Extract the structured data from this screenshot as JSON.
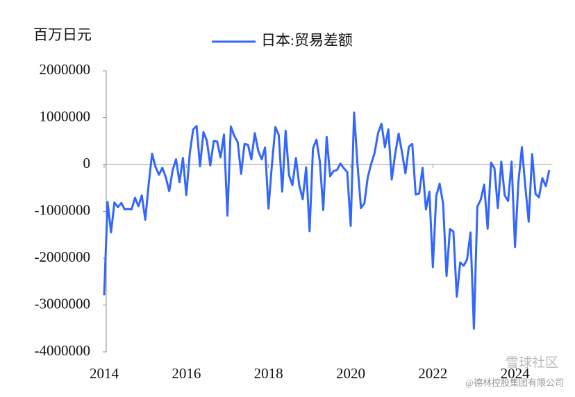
{
  "chart_data": {
    "type": "line",
    "title": "百万日元",
    "categories": [
      "2014",
      null,
      null,
      null,
      null,
      null,
      null,
      null,
      null,
      null,
      null,
      null,
      null,
      null,
      null,
      null,
      null,
      null,
      null,
      null,
      null,
      null,
      null,
      null,
      "2016",
      null,
      null,
      null,
      null,
      null,
      null,
      null,
      null,
      null,
      null,
      null,
      null,
      null,
      null,
      null,
      null,
      null,
      null,
      null,
      null,
      null,
      null,
      null,
      "2018",
      null,
      null,
      null,
      null,
      null,
      null,
      null,
      null,
      null,
      null,
      null,
      null,
      null,
      null,
      null,
      null,
      null,
      null,
      null,
      null,
      null,
      null,
      null,
      "2020",
      null,
      null,
      null,
      null,
      null,
      null,
      null,
      null,
      null,
      null,
      null,
      null,
      null,
      null,
      null,
      null,
      null,
      null,
      null,
      null,
      null,
      null,
      null,
      "2022",
      null,
      null,
      null,
      null,
      null,
      null,
      null,
      null,
      null,
      null,
      null,
      null,
      null,
      null,
      null,
      null,
      null,
      null,
      null,
      null,
      null,
      null,
      null,
      "2024",
      null,
      null,
      null,
      null,
      null,
      null,
      null,
      null,
      null,
      null
    ],
    "series": [
      {
        "name": "日本:贸易差额",
        "color": "#3366ff",
        "values": [
          -2790000,
          -800000,
          -1450000,
          -810000,
          -910000,
          -820000,
          -960000,
          -950000,
          -960000,
          -710000,
          -890000,
          -660000,
          -1180000,
          -420000,
          230000,
          -50000,
          -220000,
          -70000,
          -270000,
          -570000,
          -120000,
          110000,
          -380000,
          140000,
          -650000,
          240000,
          750000,
          820000,
          -40000,
          690000,
          510000,
          -20000,
          500000,
          490000,
          150000,
          640000,
          -1090000,
          810000,
          610000,
          480000,
          -200000,
          440000,
          420000,
          110000,
          670000,
          290000,
          110000,
          360000,
          -940000,
          0,
          800000,
          630000,
          -580000,
          720000,
          -230000,
          -440000,
          140000,
          -450000,
          -740000,
          -60000,
          -1420000,
          340000,
          530000,
          60000,
          -970000,
          590000,
          -250000,
          -140000,
          -120000,
          20000,
          -80000,
          -160000,
          -1310000,
          1110000,
          0,
          -930000,
          -830000,
          -270000,
          10000,
          250000,
          670000,
          870000,
          370000,
          750000,
          -320000,
          220000,
          660000,
          260000,
          -190000,
          380000,
          440000,
          -640000,
          -620000,
          -70000,
          -960000,
          -580000,
          -2190000,
          -670000,
          -410000,
          -840000,
          -2380000,
          -1380000,
          -1430000,
          -2820000,
          -2090000,
          -2160000,
          -2030000,
          -1450000,
          -3500000,
          -900000,
          -750000,
          -430000,
          -1370000,
          40000,
          -80000,
          -930000,
          60000,
          -660000,
          -780000,
          60000,
          -1760000,
          -380000,
          370000,
          -460000,
          -1220000,
          220000,
          -630000,
          -700000,
          -290000,
          -460000,
          -120000
        ]
      }
    ],
    "ylim": [
      -4000000,
      2000000
    ],
    "yticks": [
      -4000000,
      -3000000,
      -2000000,
      -1000000,
      0,
      1000000,
      2000000
    ]
  },
  "watermark": [
    "雪球社区",
    "@德林控股集团有限公司"
  ]
}
